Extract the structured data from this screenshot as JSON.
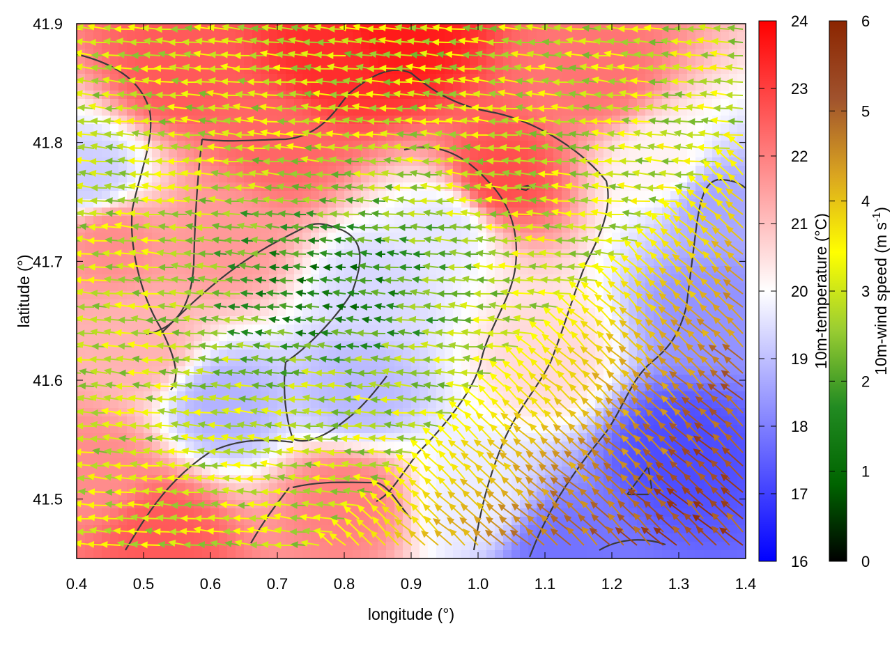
{
  "chart_data": {
    "type": "heatmap",
    "xlabel": "longitude (°)",
    "ylabel": "latitude (°)",
    "xlim": [
      0.4,
      1.4
    ],
    "ylim": [
      41.45,
      41.9
    ],
    "x_ticks": [
      "0.4",
      "0.5",
      "0.6",
      "0.7",
      "0.8",
      "0.9",
      "1.0",
      "1.1",
      "1.2",
      "1.3",
      "1.4"
    ],
    "y_ticks": [
      "41.5",
      "41.6",
      "41.7",
      "41.8",
      "41.9"
    ],
    "grid": false,
    "temperature_colorbar": {
      "label": "10m-temperature (°C)",
      "range": [
        16,
        24
      ],
      "ticks": [
        "16",
        "17",
        "18",
        "19",
        "20",
        "21",
        "22",
        "23",
        "24"
      ],
      "colors": [
        "#0000ff",
        "#ffffff",
        "#ff0000"
      ]
    },
    "windspeed_colorbar": {
      "label_main": "10m-wind speed (m s",
      "label_sup": "-1",
      "label_end": ")",
      "range": [
        0,
        6
      ],
      "ticks": [
        "0",
        "1",
        "2",
        "3",
        "4",
        "5",
        "6"
      ],
      "colors": [
        "#000000",
        "#006400",
        "#228b22",
        "#9acd32",
        "#ffff00",
        "#daa520",
        "#a0522d",
        "#8b2500"
      ]
    },
    "temperature_field_hotspots": [
      {
        "lon": 0.55,
        "lat": 41.86,
        "temp": 22.6
      },
      {
        "lon": 0.78,
        "lat": 41.87,
        "temp": 23.3
      },
      {
        "lon": 0.88,
        "lat": 41.89,
        "temp": 23.6
      },
      {
        "lon": 1.18,
        "lat": 41.86,
        "temp": 22.2
      },
      {
        "lon": 0.7,
        "lat": 41.8,
        "temp": 22.4
      },
      {
        "lon": 1.03,
        "lat": 41.77,
        "temp": 22.8
      },
      {
        "lon": 0.45,
        "lat": 41.72,
        "temp": 21.8
      },
      {
        "lon": 0.62,
        "lat": 41.72,
        "temp": 21.6
      },
      {
        "lon": 0.5,
        "lat": 41.63,
        "temp": 21.2
      },
      {
        "lon": 0.95,
        "lat": 41.73,
        "temp": 19.6
      },
      {
        "lon": 0.85,
        "lat": 41.68,
        "temp": 19.4
      },
      {
        "lon": 0.62,
        "lat": 41.58,
        "temp": 18.8
      },
      {
        "lon": 0.82,
        "lat": 41.59,
        "temp": 18.9
      },
      {
        "lon": 0.43,
        "lat": 41.52,
        "temp": 21.8
      },
      {
        "lon": 0.52,
        "lat": 41.47,
        "temp": 22.6
      },
      {
        "lon": 0.8,
        "lat": 41.5,
        "temp": 22.0
      },
      {
        "lon": 1.0,
        "lat": 41.5,
        "temp": 19.7
      },
      {
        "lon": 1.12,
        "lat": 41.46,
        "temp": 17.8
      },
      {
        "lon": 1.3,
        "lat": 41.54,
        "temp": 17.2
      },
      {
        "lon": 1.35,
        "lat": 41.66,
        "temp": 18.3
      },
      {
        "lon": 1.35,
        "lat": 41.75,
        "temp": 18.6
      },
      {
        "lon": 1.28,
        "lat": 41.78,
        "temp": 20.2
      },
      {
        "lon": 1.1,
        "lat": 41.62,
        "temp": 20.6
      },
      {
        "lon": 0.42,
        "lat": 41.77,
        "temp": 19.2
      }
    ],
    "wind_field_regimes": [
      {
        "region": "west and north",
        "direction": "easterly",
        "speed_range": [
          1.5,
          3.5
        ]
      },
      {
        "region": "central basin",
        "direction": "easterly",
        "speed_range": [
          0.5,
          2.0
        ]
      },
      {
        "region": "south-east",
        "direction": "south-easterly",
        "speed_range": [
          3.0,
          5.8
        ]
      }
    ],
    "contour_lines": "terrain contours (dark grey)"
  }
}
